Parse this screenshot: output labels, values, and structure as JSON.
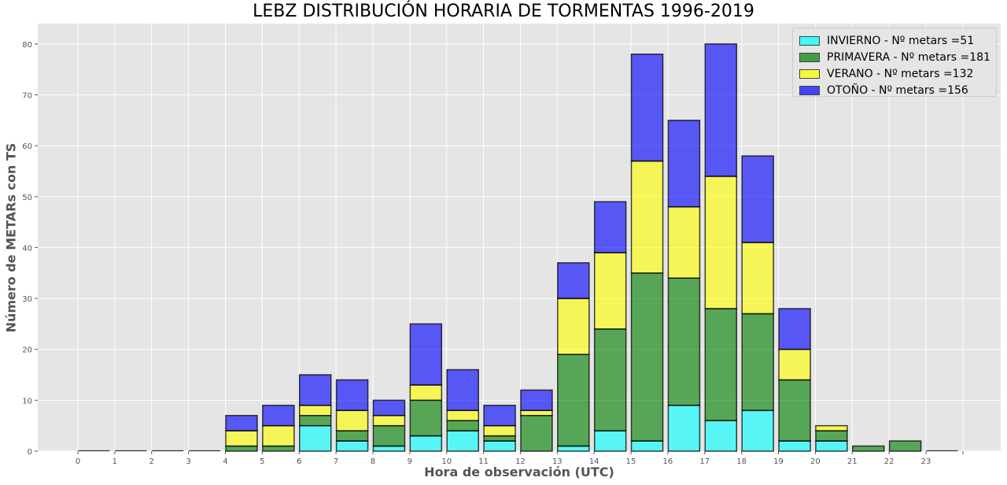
{
  "chart_data": {
    "type": "bar",
    "stacked": true,
    "title": "LEBZ DISTRIBUCIÓN HORARIA DE TORMENTAS 1996-2019",
    "xlabel": "Hora de observación (UTC)",
    "ylabel": "Número de METARs con TS",
    "categories": [
      "0",
      "1",
      "2",
      "3",
      "4",
      "5",
      "6",
      "7",
      "8",
      "9",
      "10",
      "11",
      "12",
      "13",
      "14",
      "15",
      "16",
      "17",
      "18",
      "19",
      "20",
      "21",
      "22",
      "23"
    ],
    "ylim": [
      0,
      84
    ],
    "yticks": [
      0,
      10,
      20,
      30,
      40,
      50,
      60,
      70,
      80
    ],
    "grid": true,
    "legend_position": "top-right",
    "background": "#e5e5e5",
    "series": [
      {
        "name": "INVIERNO - Nº metars =51",
        "color": "#00ffff",
        "values": [
          0,
          0,
          0,
          0,
          0,
          0,
          5,
          2,
          1,
          3,
          4,
          2,
          0,
          1,
          4,
          2,
          9,
          6,
          8,
          2,
          2,
          0,
          0,
          0
        ]
      },
      {
        "name": "PRIMAVERA - Nº metars =181",
        "color": "#008000",
        "values": [
          0,
          0,
          0,
          0,
          1,
          1,
          2,
          2,
          4,
          7,
          2,
          1,
          7,
          18,
          20,
          33,
          25,
          22,
          19,
          12,
          2,
          1,
          2,
          0
        ]
      },
      {
        "name": "VERANO - Nº metars =132",
        "color": "#ffff00",
        "values": [
          0,
          0,
          0,
          0,
          3,
          4,
          2,
          4,
          2,
          3,
          2,
          2,
          1,
          11,
          15,
          22,
          14,
          26,
          14,
          6,
          1,
          0,
          0,
          0
        ]
      },
      {
        "name": "OTOÑO - Nº metars =156",
        "color": "#0000ff",
        "values": [
          0,
          0,
          0,
          0,
          3,
          4,
          6,
          6,
          3,
          12,
          8,
          4,
          4,
          7,
          10,
          21,
          17,
          26,
          17,
          8,
          0,
          0,
          0,
          0
        ]
      }
    ]
  }
}
